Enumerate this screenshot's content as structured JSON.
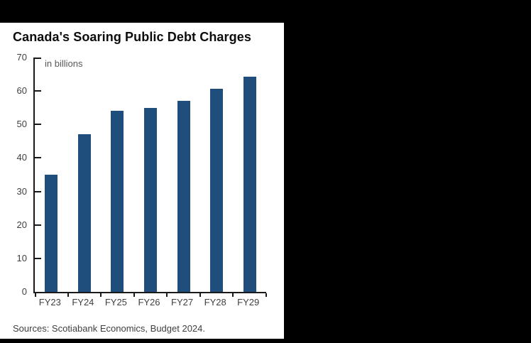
{
  "panel": {
    "source": "Sources: Scotiabank Economics, Budget 2024."
  },
  "chart_data": {
    "type": "bar",
    "title": "Canada's Soaring Public Debt Charges",
    "annotation": "in billions",
    "categories": [
      "FY23",
      "FY24",
      "FY25",
      "FY26",
      "FY27",
      "FY28",
      "FY29"
    ],
    "values": [
      35.0,
      47.2,
      54.1,
      54.9,
      57.0,
      60.7,
      64.3
    ],
    "xlabel": "",
    "ylabel": "",
    "ylim": [
      0,
      70
    ],
    "yticks": [
      0,
      10,
      20,
      30,
      40,
      50,
      60,
      70
    ],
    "grid": false,
    "legend": false,
    "bar_color": "#1f4e7c",
    "axis_color": "#1a1a1a",
    "tick_label_color": "#404040",
    "annotation_color": "#595959",
    "title_color": "#0d0d0d",
    "background_color": "#ffffff",
    "frame_color": "#000000"
  }
}
